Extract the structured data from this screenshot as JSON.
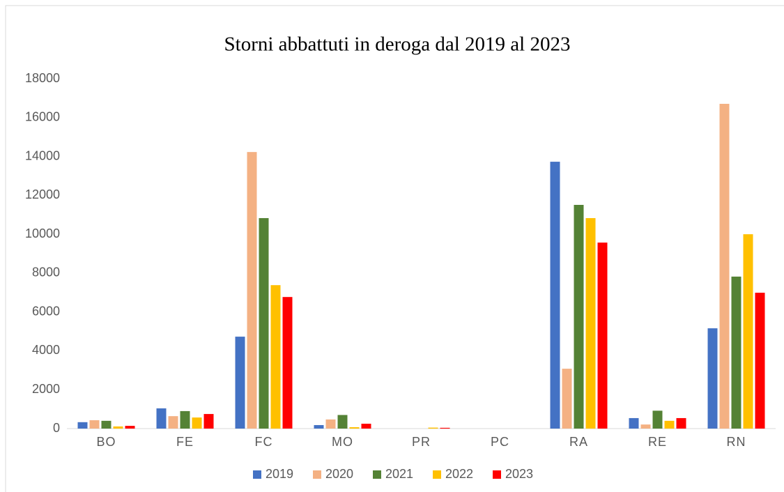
{
  "chart_data": {
    "type": "bar",
    "title": "Storni abbattuti in deroga dal 2019 al 2023",
    "categories": [
      "BO",
      "FE",
      "FC",
      "MO",
      "PR",
      "PC",
      "RA",
      "RE",
      "RN"
    ],
    "series": [
      {
        "name": "2019",
        "color": "#4472c4",
        "values": [
          330,
          1040,
          4730,
          180,
          0,
          0,
          13730,
          540,
          5160
        ]
      },
      {
        "name": "2020",
        "color": "#f4b183",
        "values": [
          430,
          640,
          14230,
          470,
          0,
          0,
          3080,
          210,
          16710
        ]
      },
      {
        "name": "2021",
        "color": "#548235",
        "values": [
          400,
          900,
          10830,
          700,
          0,
          0,
          11510,
          920,
          7820
        ]
      },
      {
        "name": "2022",
        "color": "#ffc000",
        "values": [
          110,
          570,
          7380,
          70,
          50,
          0,
          10830,
          400,
          10000
        ]
      },
      {
        "name": "2023",
        "color": "#ff0000",
        "values": [
          140,
          750,
          6770,
          250,
          40,
          0,
          9570,
          540,
          6990
        ]
      }
    ],
    "ylim": [
      0,
      18000
    ],
    "yticks": [
      0,
      2000,
      4000,
      6000,
      8000,
      10000,
      12000,
      14000,
      16000,
      18000
    ],
    "grid": false,
    "legend": "bottom"
  }
}
